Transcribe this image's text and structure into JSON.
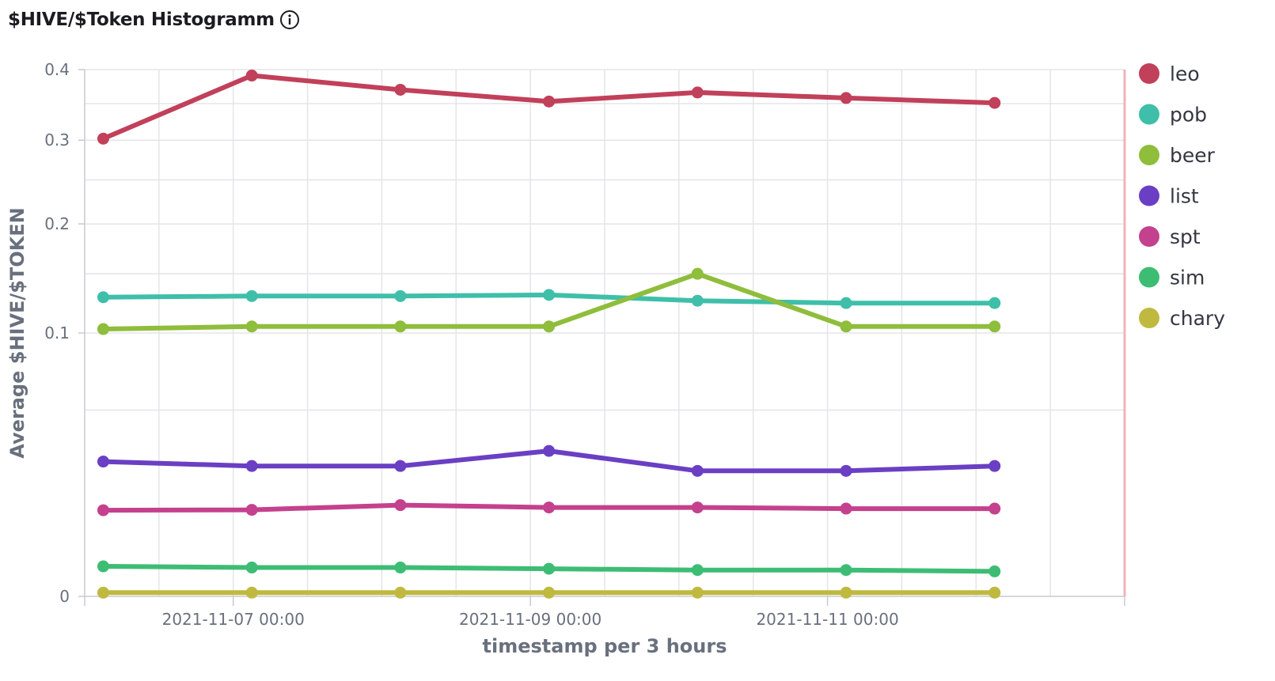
{
  "header": {
    "title": "$HIVE/$Token Histogramm",
    "info_icon": "info-icon"
  },
  "chart_data": {
    "type": "line",
    "xlabel": "timestamp per 3 hours",
    "ylabel": "Average $HIVE/$TOKEN",
    "y_scale": "sqrt",
    "ylim": [
      0,
      0.4
    ],
    "y_ticks": [
      0,
      0.1,
      0.2,
      0.3,
      0.4
    ],
    "y_tick_labels": [
      "0",
      "0.1",
      "0.2",
      "0.3",
      "0.4"
    ],
    "xlim": [
      "2021-11-06 00:00",
      "2021-11-13 00:00"
    ],
    "x_ticks": [
      "2021-11-07 00:00",
      "2021-11-09 00:00",
      "2021-11-11 00:00"
    ],
    "x_tick_labels": [
      "2021-11-07 00:00",
      "2021-11-09 00:00",
      "2021-11-11 00:00"
    ],
    "x": [
      "2021-11-06 03:00",
      "2021-11-07 03:00",
      "2021-11-08 03:00",
      "2021-11-09 03:00",
      "2021-11-10 03:00",
      "2021-11-11 03:00",
      "2021-11-12 03:00"
    ],
    "grid": true,
    "legend_position": "right",
    "series": [
      {
        "name": "leo",
        "color": "#c1405a",
        "values": [
          0.302,
          0.391,
          0.37,
          0.353,
          0.366,
          0.358,
          0.351
        ]
      },
      {
        "name": "pob",
        "color": "#3fbfaa",
        "values": [
          0.129,
          0.13,
          0.13,
          0.131,
          0.126,
          0.124,
          0.124
        ]
      },
      {
        "name": "beer",
        "color": "#8fbd3c",
        "values": [
          0.103,
          0.105,
          0.105,
          0.105,
          0.15,
          0.105,
          0.105
        ]
      },
      {
        "name": "list",
        "color": "#6a3fc4",
        "values": [
          0.0262,
          0.0245,
          0.0245,
          0.0305,
          0.0227,
          0.0227,
          0.0245
        ]
      },
      {
        "name": "spt",
        "color": "#c4418d",
        "values": [
          0.0107,
          0.0108,
          0.012,
          0.0114,
          0.0114,
          0.0111,
          0.0111
        ]
      },
      {
        "name": "sim",
        "color": "#3dbd74",
        "values": [
          0.0013,
          0.0012,
          0.0012,
          0.0011,
          0.001,
          0.001,
          0.0009
        ]
      },
      {
        "name": "chary",
        "color": "#bfb93f",
        "values": [
          2e-05,
          2e-05,
          2e-05,
          2e-05,
          2e-05,
          2e-05,
          2e-05
        ]
      }
    ]
  }
}
